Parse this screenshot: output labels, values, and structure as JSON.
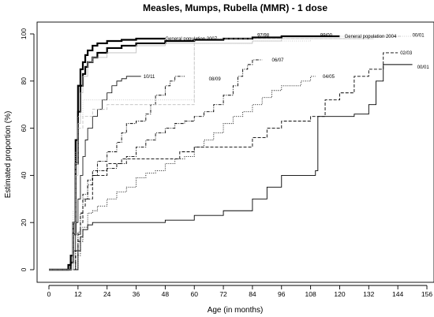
{
  "chart_data": {
    "type": "line",
    "title": "Measles, Mumps, Rubella (MMR) - 1 dose",
    "xlabel": "Age (in months)",
    "ylabel": "Estimated proportion (%)",
    "xlim": [
      0,
      156
    ],
    "ylim": [
      0,
      100
    ],
    "xticks": [
      0,
      12,
      24,
      36,
      48,
      60,
      72,
      84,
      96,
      108,
      120,
      132,
      144,
      156
    ],
    "yticks": [
      0,
      20,
      40,
      60,
      80,
      100
    ],
    "grid": false,
    "series": [
      {
        "name": "General population 2007",
        "color": "#000000",
        "style": "solid",
        "width": 2.2,
        "x": [
          0,
          6,
          8,
          9,
          10,
          11,
          12,
          13,
          14,
          15,
          16,
          18,
          20,
          24,
          30,
          36,
          48
        ],
        "y": [
          0,
          0,
          2,
          6,
          20,
          55,
          78,
          85,
          88,
          91,
          93,
          95,
          96,
          97,
          97.5,
          98,
          98
        ]
      },
      {
        "name": "General population 2004",
        "color": "#000000",
        "style": "solid",
        "width": 2.2,
        "x": [
          0,
          6,
          9,
          10,
          11,
          12,
          13,
          14,
          15,
          16,
          18,
          20,
          24,
          30,
          36,
          48,
          60,
          72,
          84,
          96,
          108,
          120
        ],
        "y": [
          0,
          0,
          3,
          15,
          45,
          67,
          78,
          83,
          86,
          88,
          90,
          92,
          94,
          95,
          96,
          97,
          97.5,
          98,
          98.5,
          99,
          99,
          99
        ]
      },
      {
        "name": "00/01",
        "color": "#000000",
        "style": "solid",
        "width": 0.9,
        "x": [
          0,
          10,
          12,
          13,
          14,
          16,
          18,
          24,
          36,
          46,
          48,
          58,
          60,
          70,
          72,
          82,
          84,
          90,
          96,
          105,
          110,
          111,
          118,
          123,
          126,
          132,
          135,
          138,
          144,
          150
        ],
        "y": [
          0,
          0,
          8,
          14,
          17,
          19,
          20,
          20,
          20,
          20,
          21,
          21,
          23,
          23,
          25,
          25,
          30,
          35,
          40,
          40,
          42,
          65,
          65,
          65,
          66,
          70,
          80,
          87,
          87,
          87
        ]
      },
      {
        "name": "02/03",
        "color": "#000000",
        "style": "dashed",
        "width": 0.9,
        "x": [
          0,
          10,
          11,
          12,
          13,
          14,
          15,
          18,
          24,
          30,
          36,
          48,
          54,
          60,
          72,
          84,
          90,
          96,
          102,
          108,
          114,
          120,
          126,
          132,
          138,
          144
        ],
        "y": [
          0,
          0,
          6,
          12,
          20,
          27,
          30,
          40,
          45,
          47,
          47,
          47,
          50,
          52,
          52,
          56,
          60,
          63,
          63,
          65,
          72,
          75,
          82,
          85,
          92,
          92
        ]
      },
      {
        "name": "04/05",
        "color": "#000000",
        "style": "dotted",
        "width": 0.9,
        "x": [
          0,
          11,
          12,
          13,
          14,
          16,
          18,
          20,
          24,
          28,
          32,
          36,
          40,
          44,
          48,
          52,
          56,
          60,
          64,
          68,
          72,
          76,
          80,
          84,
          88,
          92,
          96,
          100,
          104,
          108,
          110
        ],
        "y": [
          0,
          0,
          6,
          12,
          18,
          24,
          25,
          27,
          30,
          33,
          35,
          39,
          41,
          42,
          45,
          47,
          48,
          52,
          55,
          58,
          62,
          65,
          67,
          70,
          73,
          76,
          78,
          78,
          80,
          82,
          82
        ]
      },
      {
        "name": "06/07",
        "color": "#000000",
        "style": "dashdot",
        "width": 0.9,
        "x": [
          0,
          10,
          11,
          12,
          13,
          14,
          16,
          18,
          20,
          24,
          28,
          32,
          36,
          40,
          44,
          48,
          52,
          56,
          60,
          64,
          68,
          72,
          76,
          78,
          80,
          82,
          84,
          88
        ],
        "y": [
          0,
          0,
          8,
          15,
          24,
          30,
          36,
          40,
          42,
          43,
          45,
          48,
          52,
          55,
          58,
          60,
          62,
          63,
          65,
          67,
          70,
          74,
          78,
          82,
          85,
          87,
          89,
          89
        ]
      },
      {
        "name": "08/09",
        "color": "#000000",
        "style": "dashdot",
        "width": 0.9,
        "x": [
          0,
          10,
          11,
          12,
          13,
          14,
          16,
          18,
          20,
          24,
          28,
          30,
          32,
          36,
          40,
          42,
          44,
          48,
          50,
          52,
          56
        ],
        "y": [
          0,
          0,
          8,
          16,
          24,
          32,
          38,
          42,
          46,
          50,
          54,
          58,
          62,
          63,
          66,
          70,
          74,
          78,
          80,
          82,
          82
        ]
      },
      {
        "name": "10/11",
        "color": "#000000",
        "style": "solid",
        "width": 0.8,
        "x": [
          0,
          9,
          10,
          11,
          12,
          13,
          14,
          15,
          16,
          18,
          20,
          22,
          24,
          26,
          28,
          30,
          32,
          34,
          36,
          38
        ],
        "y": [
          0,
          0,
          8,
          20,
          30,
          40,
          48,
          55,
          60,
          65,
          68,
          72,
          75,
          78,
          80,
          81,
          82,
          82,
          82,
          82
        ]
      },
      {
        "name": "97/98",
        "color": "#bdbdbd",
        "style": "solid",
        "width": 0.8,
        "x": [
          0,
          9,
          10,
          11,
          12,
          13,
          14,
          16,
          18,
          24,
          36,
          48,
          60,
          72,
          84,
          96,
          108,
          120,
          130,
          134
        ],
        "y": [
          0,
          0,
          15,
          40,
          62,
          75,
          82,
          88,
          90,
          92,
          95,
          96,
          96,
          96,
          97,
          98,
          98,
          98,
          98,
          98
        ]
      },
      {
        "name": "99/00",
        "color": "#bdbdbd",
        "style": "dashed",
        "width": 0.8,
        "x": [
          0,
          9,
          10,
          11,
          12,
          14,
          16,
          18,
          24,
          36,
          48,
          58,
          60,
          72,
          84,
          96,
          108,
          120,
          132,
          140,
          146
        ],
        "y": [
          0,
          0,
          20,
          45,
          60,
          65,
          65,
          68,
          70,
          70,
          70,
          70,
          98,
          98,
          98,
          98,
          98,
          98,
          99,
          99,
          99
        ]
      },
      {
        "name": "00/01 grey",
        "color": "#bdbdbd",
        "style": "dotted",
        "width": 0.8,
        "x": [
          0,
          9,
          10,
          11,
          12,
          14,
          16,
          18,
          24,
          36,
          48,
          56,
          60,
          72,
          84,
          96,
          108,
          120,
          132,
          144,
          150
        ],
        "y": [
          0,
          0,
          25,
          50,
          65,
          72,
          72,
          72,
          72,
          72,
          72,
          72,
          96,
          96,
          97,
          97,
          98,
          99,
          99,
          99,
          99
        ]
      }
    ],
    "annotations": [
      {
        "text": "General population 2007",
        "x": 48,
        "y": 98,
        "anchor": "start",
        "color": "#000000"
      },
      {
        "text": "General population 2004",
        "x": 122,
        "y": 99,
        "anchor": "start",
        "color": "#000000"
      },
      {
        "text": "10/11",
        "x": 39,
        "y": 82,
        "anchor": "start",
        "color": "#000000"
      },
      {
        "text": "08/09",
        "x": 66,
        "y": 81,
        "anchor": "start",
        "color": "#000000"
      },
      {
        "text": "06/07",
        "x": 92,
        "y": 89,
        "anchor": "start",
        "color": "#000000"
      },
      {
        "text": "04/05",
        "x": 113,
        "y": 82,
        "anchor": "start",
        "color": "#000000"
      },
      {
        "text": "02/03",
        "x": 145,
        "y": 92,
        "anchor": "start",
        "color": "#000000"
      },
      {
        "text": "00/01",
        "x": 152,
        "y": 86,
        "anchor": "start",
        "color": "#000000"
      },
      {
        "text": "97/98",
        "x": 86,
        "y": 99.5,
        "anchor": "start",
        "color": "#bdbdbd"
      },
      {
        "text": "99/00",
        "x": 112,
        "y": 99.5,
        "anchor": "start",
        "color": "#bdbdbd"
      },
      {
        "text": "00/01",
        "x": 150,
        "y": 99.5,
        "anchor": "start",
        "color": "#bdbdbd"
      }
    ]
  }
}
